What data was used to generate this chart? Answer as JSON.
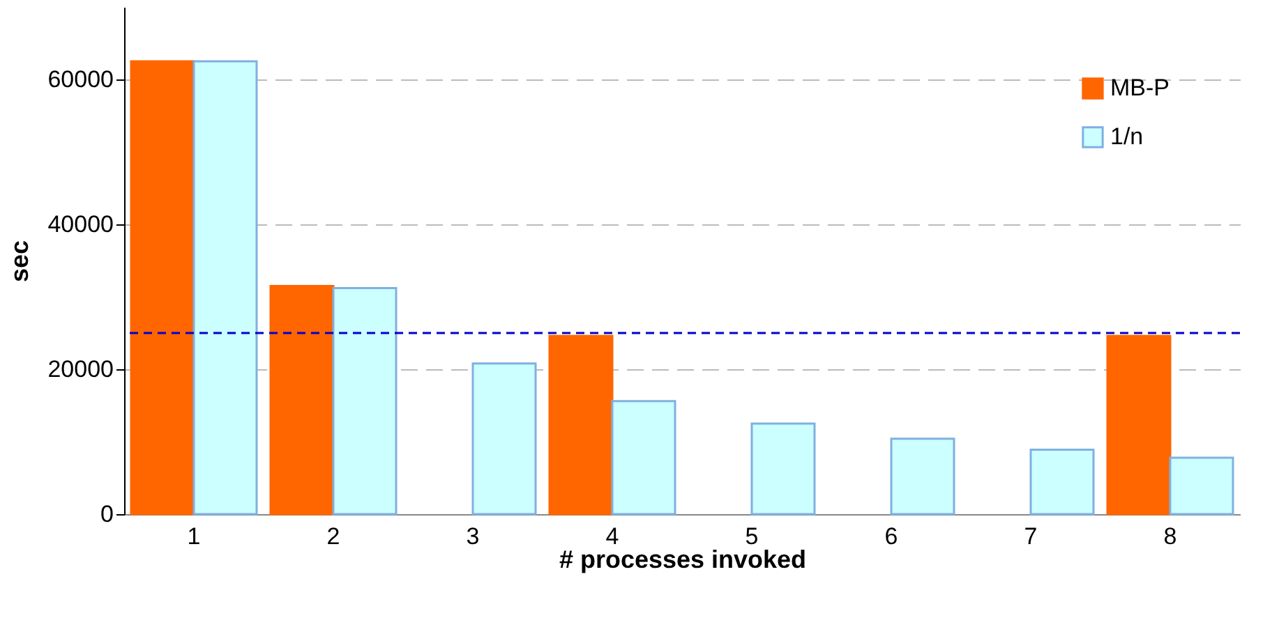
{
  "chart_data": {
    "type": "bar",
    "xlabel": "# processes invoked",
    "ylabel": "sec",
    "categories": [
      "1",
      "2",
      "3",
      "4",
      "5",
      "6",
      "7",
      "8"
    ],
    "series": [
      {
        "name": "MB-P",
        "color": "#ff6600",
        "values": [
          62500,
          31500,
          null,
          24600,
          null,
          null,
          null,
          24600
        ]
      },
      {
        "name": "1/n",
        "color": "#ccffff",
        "values": [
          62500,
          31200,
          20800,
          15600,
          12500,
          10400,
          8900,
          7800
        ]
      }
    ],
    "ylim": [
      0,
      70000
    ],
    "yticks": [
      0,
      20000,
      40000,
      60000
    ],
    "grid": "y",
    "legend": "top right",
    "ref_lines": [
      {
        "axis": "y",
        "value": 25000,
        "color": "#0000cc",
        "line_style": "dashed"
      }
    ]
  }
}
